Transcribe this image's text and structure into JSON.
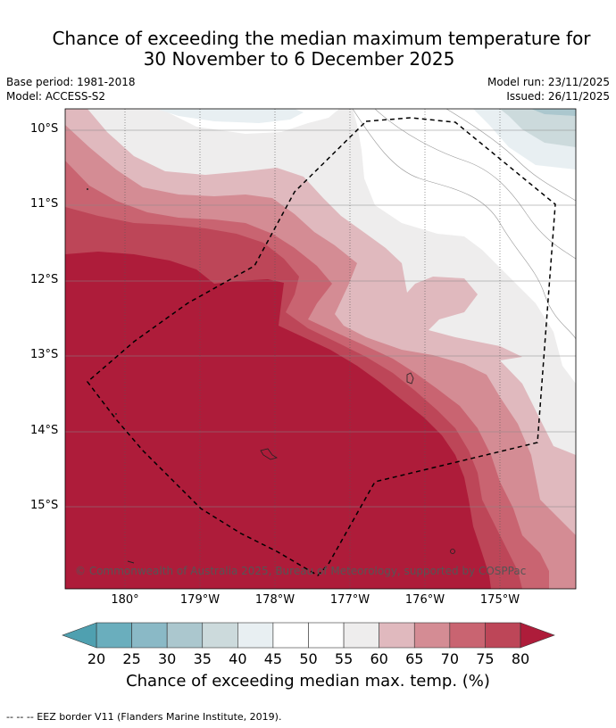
{
  "title_line1": "Chance of exceeding the median maximum temperature for",
  "title_line2": "30 November to 6 December 2025",
  "meta_left": [
    "Base period: 1981-2018",
    "Model: ACCESS-S2"
  ],
  "meta_right": [
    "Model run: 23/11/2025",
    "Issued: 26/11/2025"
  ],
  "lat_labels": [
    "10°S",
    "11°S",
    "12°S",
    "13°S",
    "14°S",
    "15°S"
  ],
  "lon_labels": [
    "180°",
    "179°W",
    "178°W",
    "177°W",
    "176°W",
    "175°W"
  ],
  "copyright": "© Commonwealth of Australia 2025, Bureau of Meteorology, supported by COSPPac",
  "colorbar": {
    "ticks": [
      "20",
      "25",
      "30",
      "35",
      "40",
      "45",
      "50",
      "55",
      "60",
      "65",
      "70",
      "75",
      "80"
    ],
    "colors": [
      "#6aaebd",
      "#8ab9c6",
      "#abc7ce",
      "#ccdadc",
      "#e8eff2",
      "#ffffff",
      "#ffffff",
      "#eeeded",
      "#e0b9be",
      "#d48c94",
      "#c96471",
      "#bd4658"
    ],
    "under_color": "#4fa0b0",
    "over_color": "#ae1c3a",
    "title": "Chance of exceeding median max. temp. (%)"
  },
  "footnote": "--  --  -- EEZ border V11 (Flanders Marine Institute, 2019)."
}
